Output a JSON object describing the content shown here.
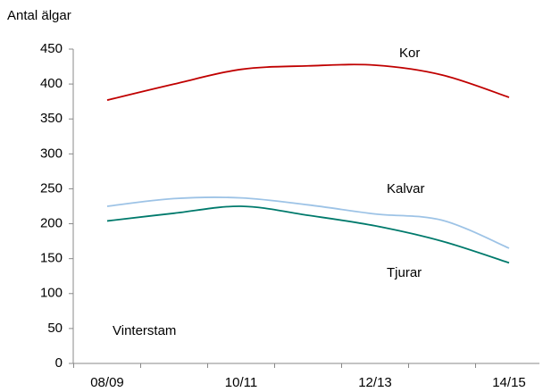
{
  "chart_data": {
    "type": "line",
    "y_axis_label": "Antal älgar",
    "annotation": "Vinterstam",
    "categories": [
      "08/09",
      null,
      "10/11",
      null,
      "12/13",
      null,
      "14/15"
    ],
    "series": [
      {
        "name": "Kor",
        "color": "#c00000",
        "values": [
          377,
          400,
          421,
          426,
          427,
          413,
          381
        ]
      },
      {
        "name": "Kalvar",
        "color": "#9dc3e6",
        "values": [
          225,
          236,
          237,
          227,
          214,
          205,
          165
        ]
      },
      {
        "name": "Tjurar",
        "color": "#007a6c",
        "values": [
          204,
          215,
          225,
          212,
          197,
          175,
          144
        ]
      }
    ],
    "ylim": [
      0,
      450
    ],
    "yticks": [
      0,
      50,
      100,
      150,
      200,
      250,
      300,
      350,
      400,
      450
    ],
    "grid": false
  }
}
